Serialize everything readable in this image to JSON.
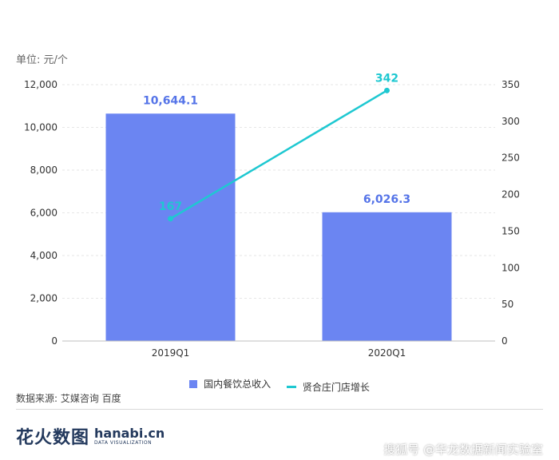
{
  "unit_label": "单位: 元/个",
  "legend": {
    "bar_label": "国内餐饮总收入",
    "line_label": "贤合庄门店增长"
  },
  "source": "数据来源: 艾媒咨询 百度",
  "logo": {
    "cn_text": "花火数图",
    "en_text": "hanabi.cn",
    "sub_text": "DATA VISUALIZATION"
  },
  "watermark": "搜狐号 @华龙数据新闻实验室",
  "colors": {
    "bar": "#6b85f2",
    "line": "#1ec8d1",
    "bar_label": "#5574e8",
    "line_label": "#1ec8d1",
    "grid": "#e6e6e6",
    "axis_text": "#333333"
  },
  "chart_data": {
    "type": "bar",
    "categories": [
      "2019Q1",
      "2020Q1"
    ],
    "series": [
      {
        "name": "国内餐饮总收入",
        "type": "bar",
        "axis": "left",
        "values": [
          10644.1,
          6026.3
        ],
        "labels": [
          "10,644.1",
          "6,026.3"
        ]
      },
      {
        "name": "贤合庄门店增长",
        "type": "line",
        "axis": "right",
        "values": [
          167,
          342
        ],
        "labels": [
          "167",
          "342"
        ]
      }
    ],
    "y_left": {
      "min": 0,
      "max": 12000,
      "ticks": [
        0,
        2000,
        4000,
        6000,
        8000,
        10000,
        12000
      ],
      "tick_labels": [
        "0",
        "2,000",
        "4,000",
        "6,000",
        "8,000",
        "10,000",
        "12,000"
      ]
    },
    "y_right": {
      "min": 0,
      "max": 350,
      "ticks": [
        0,
        50,
        100,
        150,
        200,
        250,
        300,
        350
      ],
      "tick_labels": [
        "0",
        "50",
        "100",
        "150",
        "200",
        "250",
        "300",
        "350"
      ]
    },
    "grid": true,
    "legend_position": "bottom"
  }
}
